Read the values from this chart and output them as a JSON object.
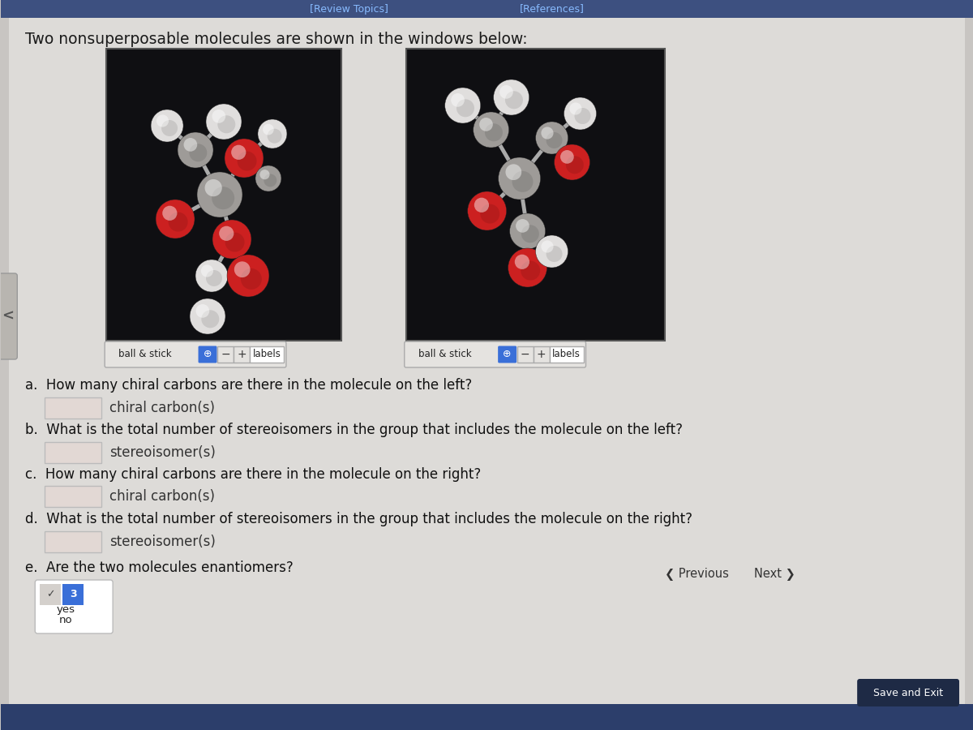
{
  "bg_color": "#c8c5c2",
  "page_bg": "#dddbd8",
  "header_text": "Two nonsuperposable molecules are shown in the windows below:",
  "header_fontsize": 13.5,
  "header_color": "#1a1a1a",
  "mol_box_bg": "#111111",
  "top_links": [
    "[Review Topics]",
    "[References]"
  ],
  "questions": [
    "a.  How many chiral carbons are there in the molecule on the left?",
    "b.  What is the total number of stereoisomers in the group that includes the molecule on the left?",
    "c.  How many chiral carbons are there in the molecule on the right?",
    "d.  What is the total number of stereoisomers in the group that includes the molecule on the right?",
    "e.  Are the two molecules enantiomers?"
  ],
  "answer_labels": [
    "chiral carbon(s)",
    "stereoisomer(s)",
    "chiral carbon(s)",
    "stereoisomer(s)"
  ],
  "question_fontsize": 12,
  "nav_prev": "Previous",
  "nav_next": "Next",
  "save_exit": "Save and Exit",
  "bottom_bar_color": "#2c3e6b",
  "toolbar_color": "#3d5080"
}
